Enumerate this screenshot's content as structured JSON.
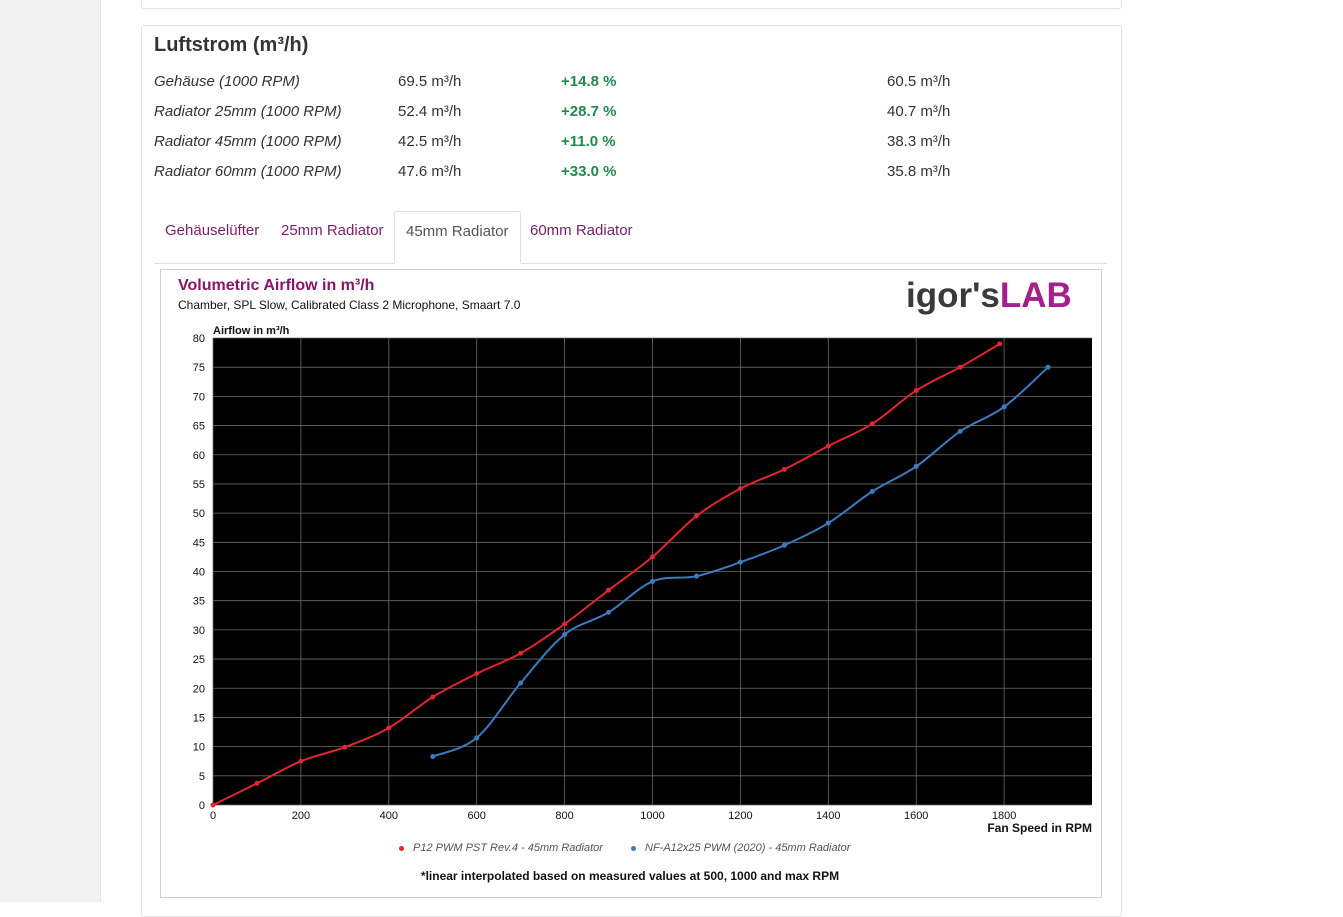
{
  "section": {
    "title": "Luftstrom (m³/h)"
  },
  "rows": [
    {
      "label": "Gehäuse (1000 RPM)",
      "value1": "69.5 m³/h",
      "delta": "+14.8 %",
      "value2": "60.5 m³/h"
    },
    {
      "label": "Radiator 25mm (1000 RPM)",
      "value1": "52.4 m³/h",
      "delta": "+28.7 %",
      "value2": "40.7 m³/h"
    },
    {
      "label": "Radiator 45mm (1000 RPM)",
      "value1": "42.5 m³/h",
      "delta": "+11.0 %",
      "value2": "38.3 m³/h"
    },
    {
      "label": "Radiator 60mm (1000 RPM)",
      "value1": "47.6 m³/h",
      "delta": "+33.0 %",
      "value2": "35.8 m³/h"
    }
  ],
  "tabs": [
    {
      "label": "Gehäuselüfter",
      "active": false
    },
    {
      "label": "25mm Radiator",
      "active": false
    },
    {
      "label": "45mm Radiator",
      "active": true
    },
    {
      "label": "60mm Radiator",
      "active": false
    }
  ],
  "logo": {
    "part1": "igor's",
    "part2": "LAB"
  },
  "colors": {
    "accent": "#8a1469",
    "positive": "#1f8a4c",
    "series1": "#e0262e",
    "series2": "#3b7bbf",
    "plot_bg": "#000000"
  },
  "chart_data": {
    "type": "line",
    "title": "Volumetric Airflow in m³/h",
    "subtitle": "Chamber, SPL Slow, Calibrated Class 2 Microphone, Smaart 7.0",
    "xlabel": "Fan Speed in RPM",
    "ylabel": "Airflow in m³/h",
    "xlim": [
      0,
      2000
    ],
    "ylim": [
      0,
      80
    ],
    "xticks": [
      0,
      200,
      400,
      600,
      800,
      1000,
      1200,
      1400,
      1600,
      1800
    ],
    "yticks": [
      0,
      5,
      10,
      15,
      20,
      25,
      30,
      35,
      40,
      45,
      50,
      55,
      60,
      65,
      70,
      75,
      80
    ],
    "grid": true,
    "legend_position": "bottom",
    "series": [
      {
        "name": "P12 PWM PST Rev.4 - 45mm Radiator",
        "color": "#e0262e",
        "x": [
          0,
          100,
          200,
          300,
          400,
          500,
          600,
          700,
          800,
          900,
          1000,
          1100,
          1200,
          1300,
          1400,
          1500,
          1600,
          1700,
          1790
        ],
        "y": [
          0,
          3.7,
          7.5,
          9.9,
          13.2,
          18.5,
          22.5,
          26.0,
          31.0,
          36.8,
          42.5,
          49.5,
          54.2,
          57.5,
          61.5,
          65.3,
          71.0,
          75.0,
          79.0
        ]
      },
      {
        "name": "NF-A12x25 PWM (2020) - 45mm Radiator",
        "color": "#3b7bbf",
        "x": [
          500,
          600,
          700,
          800,
          900,
          1000,
          1100,
          1200,
          1300,
          1400,
          1500,
          1600,
          1700,
          1800,
          1900
        ],
        "y": [
          8.3,
          11.5,
          20.9,
          29.2,
          33.0,
          38.3,
          39.2,
          41.6,
          44.5,
          48.3,
          53.7,
          58.0,
          64.0,
          68.2,
          75.0
        ]
      }
    ],
    "footnote": "*linear interpolated based on measured values at 500, 1000 and max RPM"
  }
}
